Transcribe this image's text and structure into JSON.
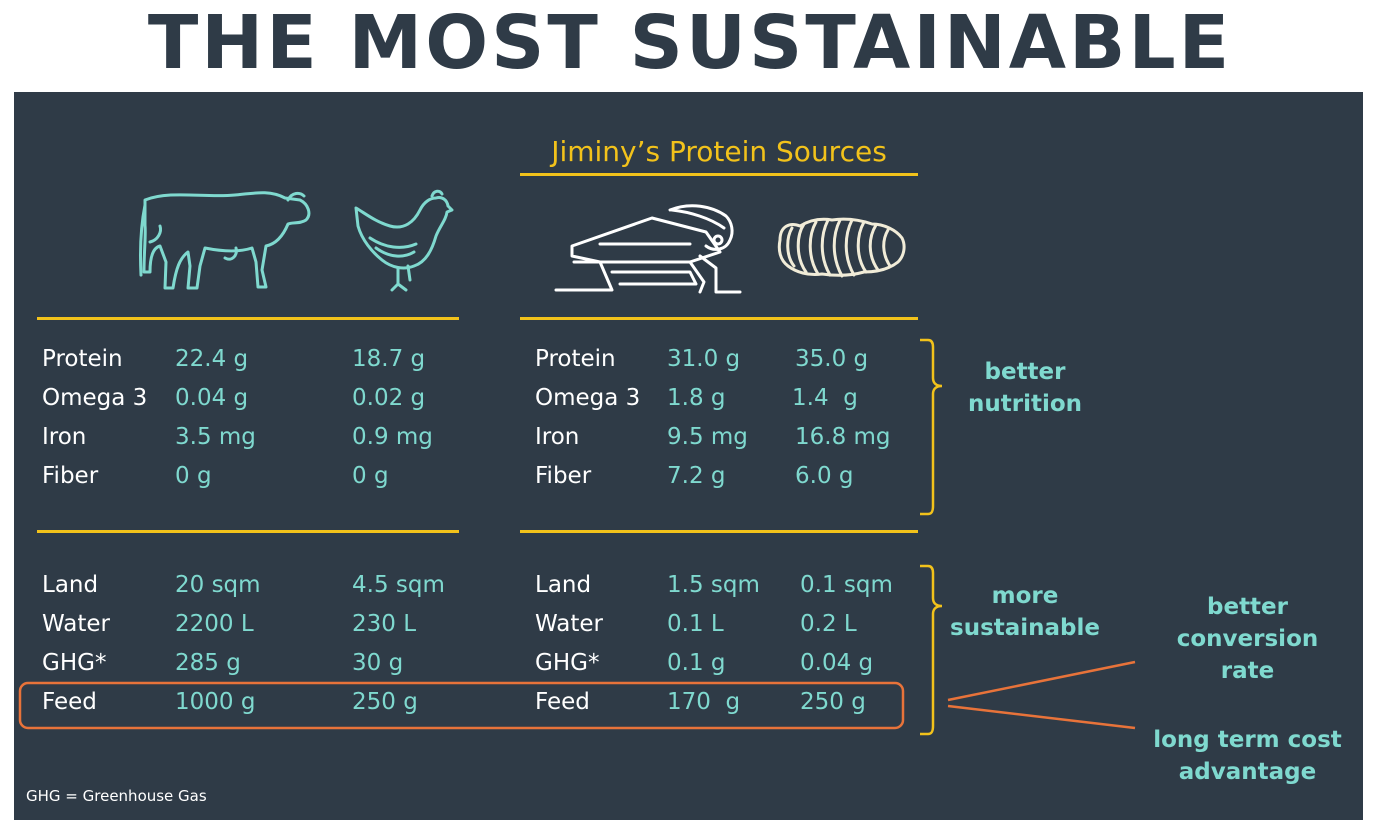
{
  "title": "THE MOST SUSTAINABLE",
  "panel_title": "Jiminy’s Protein Sources",
  "icons": [
    "cow-icon",
    "chicken-icon",
    "cricket-icon",
    "larva-icon"
  ],
  "colors": {
    "background": "#2f3b47",
    "accent_yellow": "#f2c21b",
    "teal": "#7fd9cf",
    "orange": "#e8733a"
  },
  "nutrition": [
    {
      "label": "Protein",
      "values": [
        "22.4 g",
        "18.7 g",
        "31.0 g",
        "35.0 g"
      ]
    },
    {
      "label": "Omega 3",
      "values": [
        "0.04 g",
        "0.02 g",
        "1.8 g",
        "1.4  g"
      ]
    },
    {
      "label": "Iron",
      "values": [
        "3.5 mg",
        "0.9 mg",
        "9.5 mg",
        "16.8 mg"
      ]
    },
    {
      "label": "Fiber",
      "values": [
        "0 g",
        "0 g",
        "7.2 g",
        "6.0 g"
      ]
    }
  ],
  "sustainability": [
    {
      "label": "Land",
      "values": [
        "20 sqm",
        "4.5 sqm",
        "1.5 sqm",
        "0.1 sqm"
      ]
    },
    {
      "label": "Water",
      "values": [
        "2200 L",
        "230 L",
        "0.1 L",
        "0.2 L"
      ]
    },
    {
      "label": "GHG*",
      "values": [
        "285 g",
        "30 g",
        "0.1 g",
        "0.04 g"
      ]
    },
    {
      "label": "Feed",
      "values": [
        "1000 g",
        "250 g",
        "170  g",
        "250 g"
      ]
    }
  ],
  "notes": {
    "nutrition_line1": "better",
    "nutrition_line2": "nutrition",
    "sustain_line1": "more",
    "sustain_line2": "sustainable",
    "conversion_line1": "better",
    "conversion_line2": "conversion",
    "conversion_line3": "rate",
    "cost_line1": "long term cost",
    "cost_line2": "advantage"
  },
  "footnote": "GHG = Greenhouse Gas"
}
